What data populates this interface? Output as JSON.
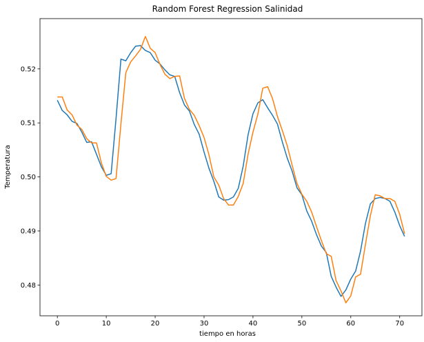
{
  "chart_data": {
    "type": "line",
    "title": "Random Forest Regression Salinidad",
    "xlabel": "tiempo en horas",
    "ylabel": "Temperatura",
    "xlim": [
      -3.55,
      74.55
    ],
    "ylim": [
      0.4743,
      0.5293
    ],
    "xticks": [
      0,
      10,
      20,
      30,
      40,
      50,
      60,
      70
    ],
    "yticks": [
      0.48,
      0.49,
      0.5,
      0.51,
      0.52
    ],
    "ytick_labels": [
      "0.48",
      "0.49",
      "0.50",
      "0.51",
      "0.52"
    ],
    "grid": false,
    "legend": null,
    "x": [
      0,
      1,
      2,
      3,
      4,
      5,
      6,
      7,
      8,
      9,
      10,
      11,
      12,
      13,
      14,
      15,
      16,
      17,
      18,
      19,
      20,
      21,
      22,
      23,
      24,
      25,
      26,
      27,
      28,
      29,
      30,
      31,
      32,
      33,
      34,
      35,
      36,
      37,
      38,
      39,
      40,
      41,
      42,
      43,
      44,
      45,
      46,
      47,
      48,
      49,
      50,
      51,
      52,
      53,
      54,
      55,
      56,
      57,
      58,
      59,
      60,
      61,
      62,
      63,
      64,
      65,
      66,
      67,
      68,
      69,
      70,
      71
    ],
    "series": [
      {
        "color": "#1f77b4",
        "values": [
          0.5142,
          0.5123,
          0.5115,
          0.5103,
          0.5099,
          0.5083,
          0.5064,
          0.5065,
          0.5042,
          0.5019,
          0.5003,
          0.5006,
          0.5108,
          0.5218,
          0.5215,
          0.523,
          0.5242,
          0.5243,
          0.5234,
          0.523,
          0.5216,
          0.5209,
          0.5198,
          0.5189,
          0.5186,
          0.5156,
          0.5133,
          0.5122,
          0.5097,
          0.5079,
          0.5046,
          0.5016,
          0.4992,
          0.4963,
          0.4957,
          0.4958,
          0.4963,
          0.4979,
          0.502,
          0.5078,
          0.5117,
          0.5137,
          0.5143,
          0.5128,
          0.5114,
          0.5098,
          0.5065,
          0.5035,
          0.5011,
          0.498,
          0.4967,
          0.4937,
          0.4918,
          0.4893,
          0.4872,
          0.486,
          0.4816,
          0.4796,
          0.4779,
          0.4791,
          0.4811,
          0.4826,
          0.4863,
          0.4914,
          0.495,
          0.496,
          0.4962,
          0.496,
          0.4955,
          0.4935,
          0.491,
          0.489
        ]
      },
      {
        "color": "#ff7f0e",
        "values": [
          0.5148,
          0.5148,
          0.5124,
          0.5115,
          0.5096,
          0.5088,
          0.5071,
          0.5063,
          0.5063,
          0.5026,
          0.5001,
          0.4994,
          0.4997,
          0.5098,
          0.5193,
          0.5213,
          0.5224,
          0.5236,
          0.526,
          0.5238,
          0.523,
          0.5208,
          0.519,
          0.5182,
          0.5186,
          0.5187,
          0.5145,
          0.5125,
          0.5114,
          0.5095,
          0.5073,
          0.5041,
          0.5,
          0.4985,
          0.496,
          0.4948,
          0.4948,
          0.4964,
          0.4988,
          0.5042,
          0.5083,
          0.5116,
          0.5164,
          0.5167,
          0.5145,
          0.5112,
          0.5086,
          0.5058,
          0.5022,
          0.4988,
          0.4968,
          0.4955,
          0.4935,
          0.4908,
          0.4882,
          0.4858,
          0.4853,
          0.4808,
          0.4789,
          0.4767,
          0.478,
          0.4815,
          0.482,
          0.4875,
          0.4928,
          0.4967,
          0.4965,
          0.496,
          0.496,
          0.4955,
          0.4931,
          0.4895
        ]
      }
    ]
  }
}
